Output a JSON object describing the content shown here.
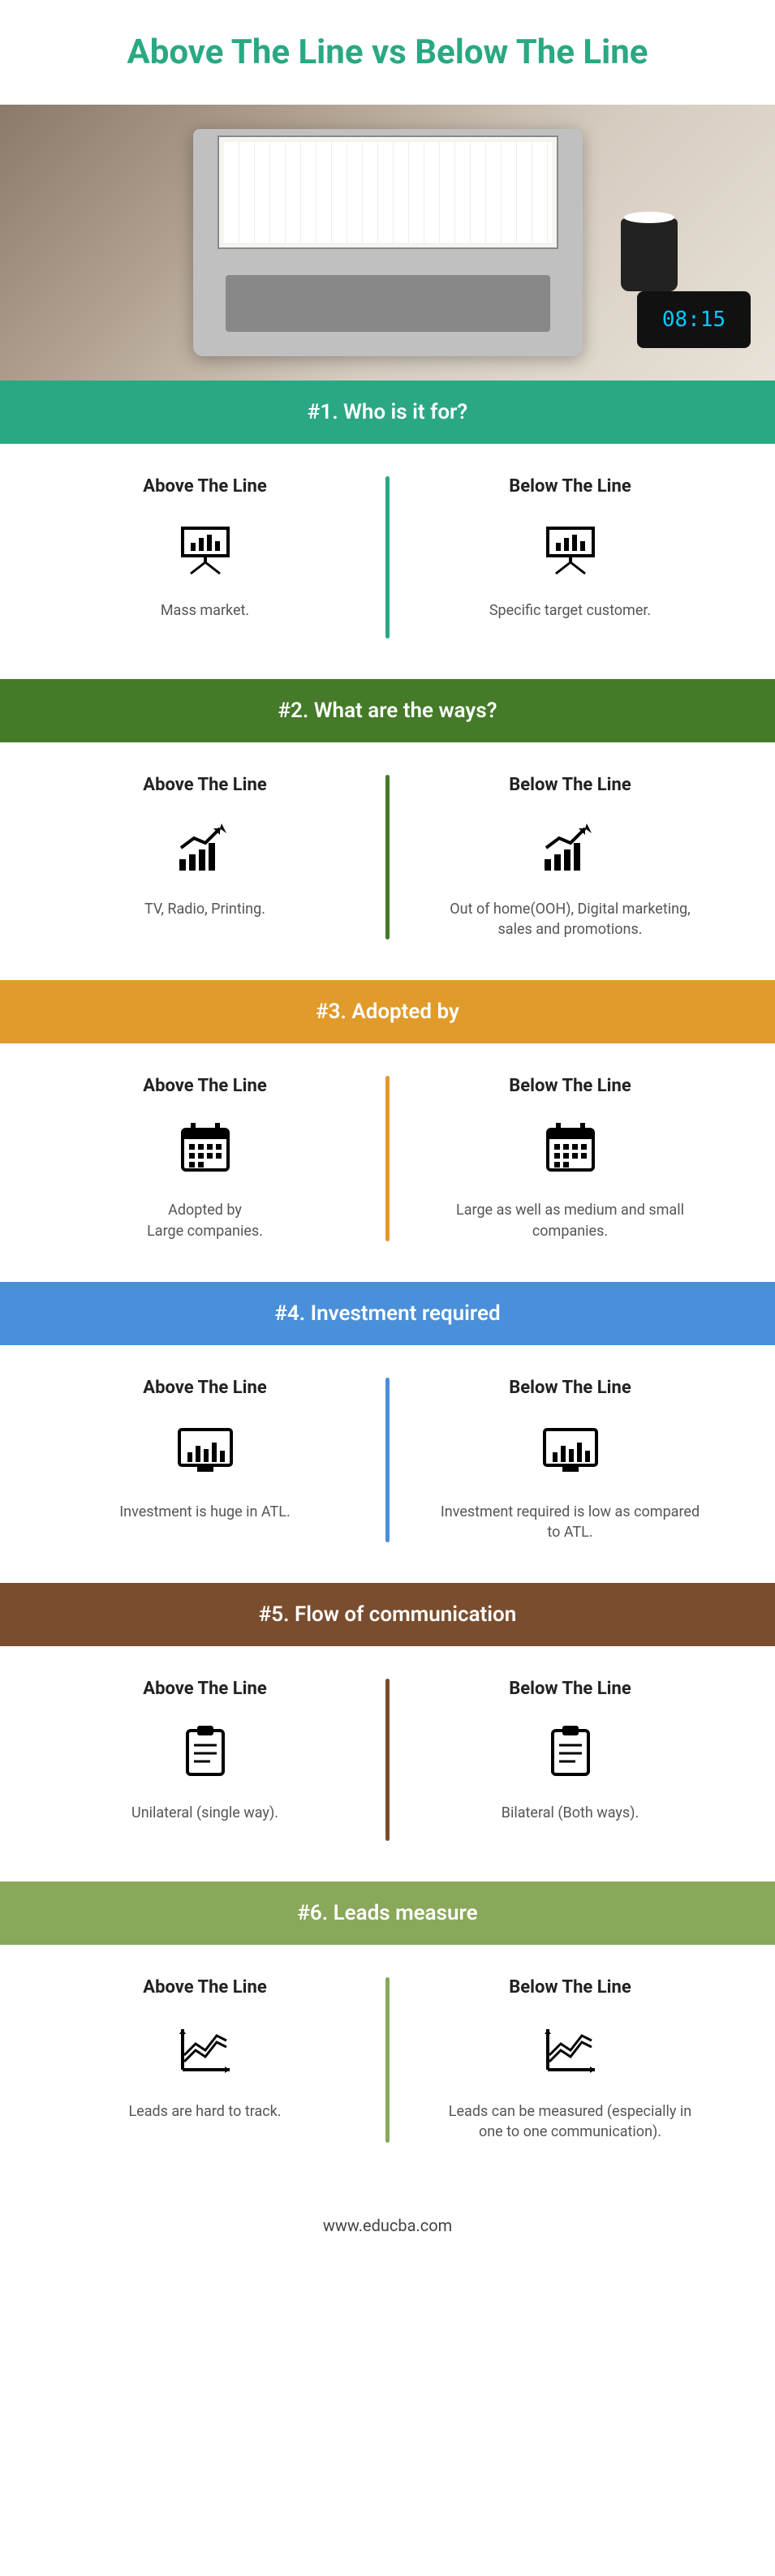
{
  "title": "Above The Line vs Below The Line",
  "hero_clock": "08:15",
  "column_labels": {
    "left": "Above The Line",
    "right": "Below The Line"
  },
  "sections": [
    {
      "num": "#1.",
      "title": "Who is it for?",
      "bg": "#2aa883",
      "icon": "presentation",
      "left": "Mass market.",
      "right": "Specific target customer."
    },
    {
      "num": "#2.",
      "title": "What are the ways?",
      "bg": "#447a28",
      "icon": "growth",
      "left": "TV, Radio, Printing.",
      "right": "Out of home(OOH), Digital marketing, sales and promotions."
    },
    {
      "num": "#3.",
      "title": "Adopted by",
      "bg": "#e09b2a",
      "icon": "calendar",
      "left": "Adopted by\nLarge companies.",
      "right": "Large as well as medium and small companies."
    },
    {
      "num": "#4.",
      "title": "Investment required",
      "bg": "#4a8fd9",
      "icon": "barscreen",
      "left": "Investment is huge in ATL.",
      "right": "Investment required is low as compared to ATL."
    },
    {
      "num": "#5.",
      "title": "Flow of communication",
      "bg": "#7a4d2e",
      "icon": "clipboard",
      "left": "Unilateral (single way).",
      "right": "Bilateral (Both ways)."
    },
    {
      "num": "#6.",
      "title": "Leads measure",
      "bg": "#89a85a",
      "icon": "linechart",
      "left": "Leads are hard to track.",
      "right": "Leads can be measured (especially in one to one communication)."
    }
  ],
  "footer": "www.educba.com",
  "colors": {
    "title": "#2aa883",
    "text": "#555555",
    "heading": "#222222"
  }
}
